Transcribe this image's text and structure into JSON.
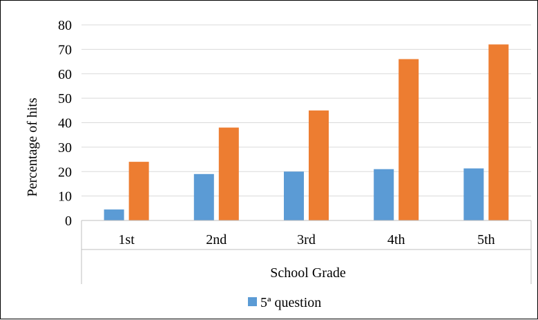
{
  "chart_data": {
    "type": "bar",
    "title": "",
    "xlabel": "School Grade",
    "ylabel": "Percentage of hits",
    "categories": [
      "1st",
      "2nd",
      "3rd",
      "4th",
      "5th"
    ],
    "ylim": [
      0,
      80
    ],
    "yticks": [
      0,
      10,
      20,
      30,
      40,
      50,
      60,
      70,
      80
    ],
    "grid": true,
    "legend_position": "bottom",
    "series": [
      {
        "name": "5ª question",
        "color": "#5B9BD5",
        "values": [
          4.5,
          19,
          20,
          21,
          21.3
        ]
      },
      {
        "color": "#ED7D31",
        "values": [
          24,
          38,
          45,
          66,
          72
        ]
      }
    ]
  }
}
